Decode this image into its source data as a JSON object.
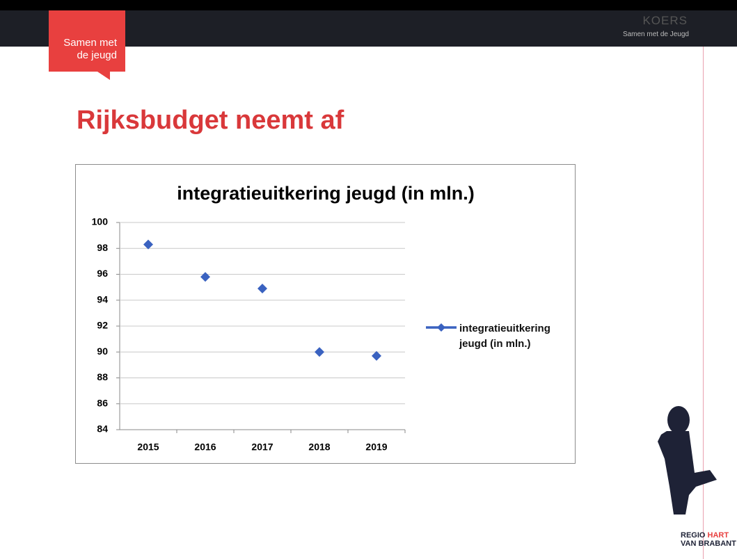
{
  "slide": {
    "tag": [
      "Samen met",
      "de jeugd"
    ],
    "brand": "KOERS",
    "brand_sub": "Samen met de Jeugd",
    "title": "Rijksbudget neemt af",
    "logo": [
      "REGIO",
      "HART",
      "VAN BRABANT"
    ]
  },
  "chart_data": {
    "type": "line",
    "title": "integratieuitkering jeugd (in mln.)",
    "categories": [
      "2015",
      "2016",
      "2017",
      "2018",
      "2019"
    ],
    "series": [
      {
        "name": "integratieuitkering jeugd (in mln.)",
        "color": "#3a62c0",
        "values": [
          98.3,
          95.8,
          94.9,
          90.0,
          89.7
        ]
      }
    ],
    "ylim": [
      84,
      100
    ],
    "yticks": [
      84,
      86,
      88,
      90,
      92,
      94,
      96,
      98,
      100
    ],
    "grid": true,
    "legend": "right"
  }
}
